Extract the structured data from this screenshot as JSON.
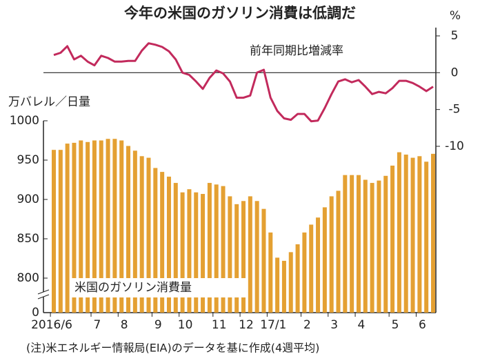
{
  "chart_data": {
    "type": "bar",
    "title": "今年の米国のガソリン消費は低調だ",
    "ylabel": "万バレル／日量",
    "y2label": "%",
    "note": "(注)米エネルギー情報局(EIA)のデータを基に作成(4週平均)",
    "categories": [
      "2016/6",
      null,
      null,
      null,
      null,
      null,
      "7",
      null,
      null,
      null,
      "8",
      null,
      null,
      null,
      null,
      "9",
      null,
      null,
      null,
      "10",
      null,
      null,
      null,
      null,
      "11",
      null,
      null,
      null,
      "12",
      null,
      null,
      null,
      "17/1",
      null,
      null,
      null,
      null,
      "2",
      null,
      null,
      null,
      "3",
      null,
      null,
      null,
      "4",
      null,
      null,
      null,
      null,
      "5",
      null,
      null,
      null,
      "6",
      null,
      null
    ],
    "series": [
      {
        "name": "米国のガソリン消費量",
        "type": "bar",
        "color": "#e4a032",
        "values": [
          963,
          963,
          971,
          972,
          975,
          973,
          975,
          975,
          977,
          977,
          975,
          968,
          962,
          955,
          953,
          940,
          935,
          929,
          921,
          909,
          913,
          909,
          907,
          921,
          919,
          917,
          904,
          894,
          898,
          904,
          898,
          888,
          858,
          826,
          822,
          833,
          843,
          858,
          868,
          877,
          890,
          904,
          911,
          931,
          931,
          931,
          925,
          921,
          924,
          930,
          943,
          960,
          957,
          953,
          955,
          948,
          958
        ]
      },
      {
        "name": "前年同期比増減率",
        "type": "line",
        "axis": "y2",
        "color": "#c22a5c",
        "values": [
          2.4,
          2.7,
          3.6,
          1.8,
          2.3,
          1.5,
          1.0,
          2.3,
          2.0,
          1.5,
          1.5,
          1.6,
          1.6,
          3.0,
          4.0,
          3.8,
          3.5,
          2.9,
          1.8,
          0,
          -0.3,
          -1.2,
          -2.2,
          -0.7,
          0.3,
          -0.1,
          -1.2,
          -3.4,
          -3.4,
          -3.1,
          0,
          0.4,
          -3.4,
          -5.2,
          -6.2,
          -6.4,
          -5.6,
          -5.6,
          -6.6,
          -6.5,
          -4.8,
          -2.9,
          -1.2,
          -0.9,
          -1.3,
          -1.0,
          -1.9,
          -2.9,
          -2.6,
          -2.8,
          -2.1,
          -1.1,
          -1.1,
          -1.4,
          -1.9,
          -2.5,
          -1.9
        ]
      }
    ],
    "ylim": [
      0,
      1000
    ],
    "yticks": [
      0,
      800,
      850,
      900,
      950,
      1000
    ],
    "y_break": true,
    "y2lim": [
      -10,
      5
    ],
    "y2ticks": [
      -10,
      -5,
      0,
      5
    ],
    "grid": false
  }
}
